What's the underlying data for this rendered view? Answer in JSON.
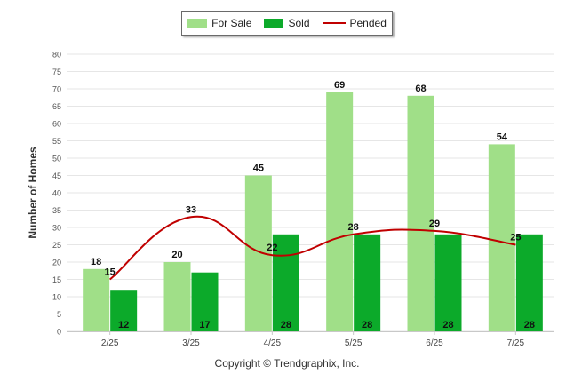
{
  "chart_data": {
    "type": "bar",
    "categories": [
      "2/25",
      "3/25",
      "4/25",
      "5/25",
      "6/25",
      "7/25"
    ],
    "series": [
      {
        "name": "For Sale",
        "type": "bar",
        "color": "#a0df88",
        "values": [
          18,
          20,
          45,
          69,
          68,
          54
        ]
      },
      {
        "name": "Sold",
        "type": "bar",
        "color": "#0caa2a",
        "values": [
          12,
          17,
          28,
          28,
          28,
          28
        ]
      },
      {
        "name": "Pended",
        "type": "line",
        "color": "#c00000",
        "values": [
          15,
          33,
          22,
          28,
          29,
          25
        ]
      }
    ],
    "ylabel": "Number of Homes",
    "xlabel": "",
    "ylim": [
      0,
      80
    ],
    "yticks": [
      0,
      5,
      10,
      15,
      20,
      25,
      30,
      35,
      40,
      45,
      50,
      55,
      60,
      65,
      70,
      75,
      80
    ],
    "grid": true,
    "legend": "top-center"
  },
  "legend": {
    "for_sale": "For Sale",
    "sold": "Sold",
    "pended": "Pended"
  },
  "footer": {
    "copyright": "Copyright © Trendgraphix, Inc."
  }
}
